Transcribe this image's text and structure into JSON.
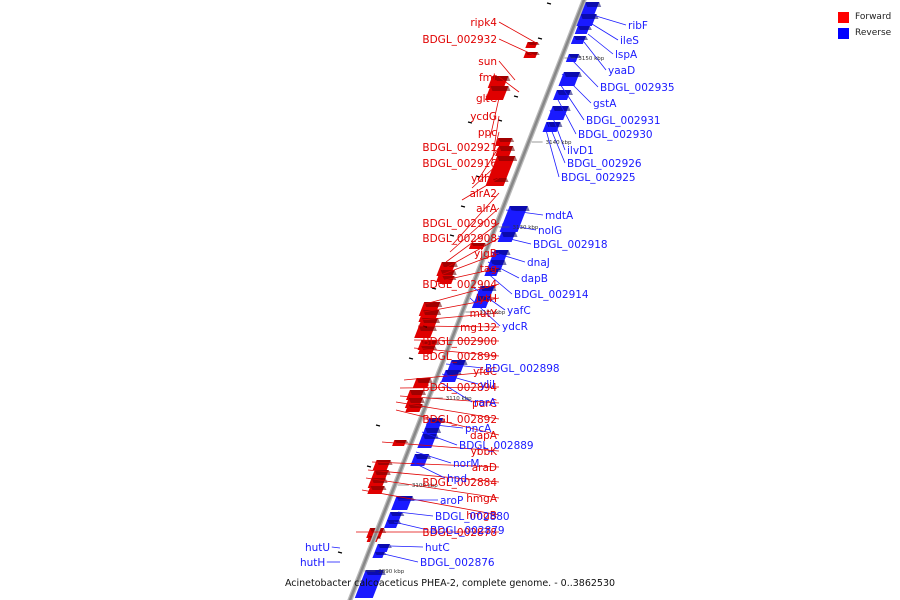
{
  "caption": "Acinetobacter calcoaceticus PHEA-2, complete genome. - 0..3862530",
  "legend": [
    {
      "label": "Forward",
      "color": "#ff0000"
    },
    {
      "label": "Reverse",
      "color": "#0000ff"
    }
  ],
  "colors": {
    "forward": "#e00000",
    "reverse": "#1a1aff",
    "axis": "#888888"
  },
  "ticks": [
    "3090 kbp",
    "3100 kbp",
    "3110 kbp",
    "3120 kbp",
    "3130 kbp",
    "3140 kbp",
    "3150 kbp"
  ],
  "forward_genes": [
    "ripk4",
    "BDGL_002932",
    "sun",
    "fmt",
    "gltC",
    "ycdG",
    "ppc",
    "BDGL_002921",
    "BDGL_002916",
    "ydhP",
    "alrA2",
    "alrA",
    "BDGL_002909",
    "BDGL_002908",
    "yjgB",
    "tag",
    "BDGL_002904",
    "lytH",
    "mutY",
    "mg132",
    "BDGL_002900",
    "BDGL_002899",
    "yfdC",
    "BDGL_002894",
    "purC",
    "BDGL_002892",
    "dapA",
    "ybbK",
    "araD",
    "BDGL_002884",
    "hmgA",
    "hmgB",
    "BDGL_002878"
  ],
  "reverse_genes": [
    "ribF",
    "ileS",
    "lspA",
    "yaaD",
    "BDGL_002935",
    "gstA",
    "BDGL_002931",
    "BDGL_002930",
    "ilvD1",
    "BDGL_002926",
    "BDGL_002925",
    "mdtA",
    "nolG",
    "BDGL_002918",
    "dnaJ",
    "dapB",
    "BDGL_002914",
    "yafC",
    "ydcR",
    "BDGL_002898",
    "yliI",
    "rarA",
    "pncA",
    "BDGL_002889",
    "norM",
    "hpd",
    "aroP",
    "BDGL_002880",
    "BDGL_002879",
    "hutC",
    "BDGL_002876",
    "hutU",
    "hutH"
  ]
}
